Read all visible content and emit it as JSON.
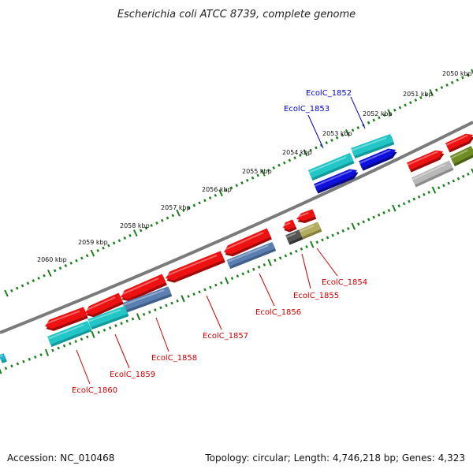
{
  "title": "Escherichia coli ATCC 8739, complete genome",
  "footer": {
    "accession": "Accession: NC_010468",
    "stats": "Topology: circular; Length: 4,746,218 bp; Genes: 4,323"
  },
  "tick_labels": [
    "2050 kbp",
    "2051 kbp",
    "2052 kbp",
    "2053 kbp",
    "2054 kbp",
    "2055 kbp",
    "2056 kbp",
    "2057 kbp",
    "2058 kbp",
    "2059 kbp",
    "2060 kbp"
  ],
  "gene_labels": {
    "EcolC_1852": "EcolC_1852",
    "EcolC_1853": "EcolC_1853",
    "EcolC_1854": "EcolC_1854",
    "EcolC_1855": "EcolC_1855",
    "EcolC_1856": "EcolC_1856",
    "EcolC_1857": "EcolC_1857",
    "EcolC_1858": "EcolC_1858",
    "EcolC_1859": "EcolC_1859",
    "EcolC_1860": "EcolC_1860"
  },
  "colors": {
    "backbone": "#7a7a7a",
    "tick": "#1e7d1e",
    "forward_label": "#0000cc",
    "reverse_label": "#cc0000",
    "red": "#ee1111",
    "cyan": "#22c6c6",
    "blue": "#1010dd",
    "steel": "#5a7fb0",
    "gray": "#b8b8b8",
    "olive": "#6f8c23",
    "khaki": "#b3ab5e",
    "darkgray": "#555555"
  }
}
